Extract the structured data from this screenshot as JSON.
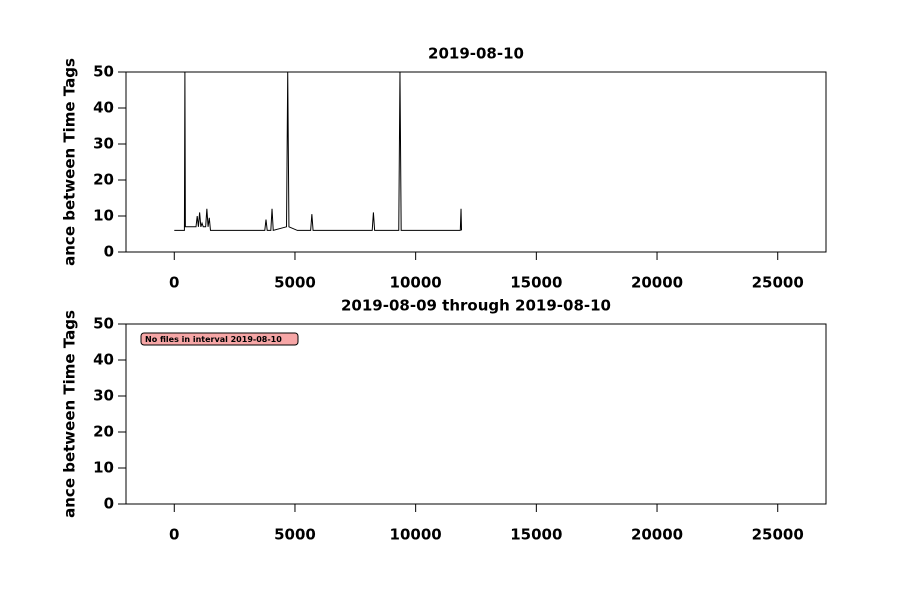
{
  "chart_data": [
    {
      "type": "line",
      "title": "2019-08-10",
      "y_label": "ance between Time Tags",
      "x": [
        0,
        420,
        440,
        460,
        900,
        950,
        1000,
        1050,
        1100,
        1150,
        1200,
        1300,
        1350,
        1400,
        1450,
        1500,
        3750,
        3800,
        3850,
        4000,
        4050,
        4100,
        4650,
        4700,
        4750,
        5100,
        5650,
        5700,
        5750,
        8200,
        8250,
        8300,
        9300,
        9350,
        9400,
        11850,
        11880,
        11900
      ],
      "values": [
        6,
        6,
        50,
        7,
        7,
        10,
        7,
        11,
        7,
        8,
        7,
        7,
        12,
        7,
        9.5,
        6,
        6,
        9,
        6,
        6,
        12,
        6,
        7,
        50,
        7,
        6,
        6,
        10.5,
        6,
        6,
        11,
        6,
        6,
        50,
        6,
        6,
        12,
        6
      ],
      "color": "#000000",
      "xlim": [
        -2000,
        27000
      ],
      "xticks": [
        0,
        5000,
        10000,
        15000,
        20000,
        25000
      ],
      "ylim": [
        0,
        50
      ],
      "yticks": [
        0,
        10,
        20,
        30,
        40,
        50
      ]
    },
    {
      "type": "line",
      "title": "2019-08-09 through 2019-08-10",
      "y_label": "ance between Time Tags",
      "annotation": "No files in interval 2019-08-10",
      "xlim": [
        -2000,
        27000
      ],
      "xticks": [
        0,
        5000,
        10000,
        15000,
        20000,
        25000
      ],
      "ylim": [
        0,
        50
      ],
      "yticks": [
        0,
        10,
        20,
        30,
        40,
        50
      ]
    }
  ]
}
